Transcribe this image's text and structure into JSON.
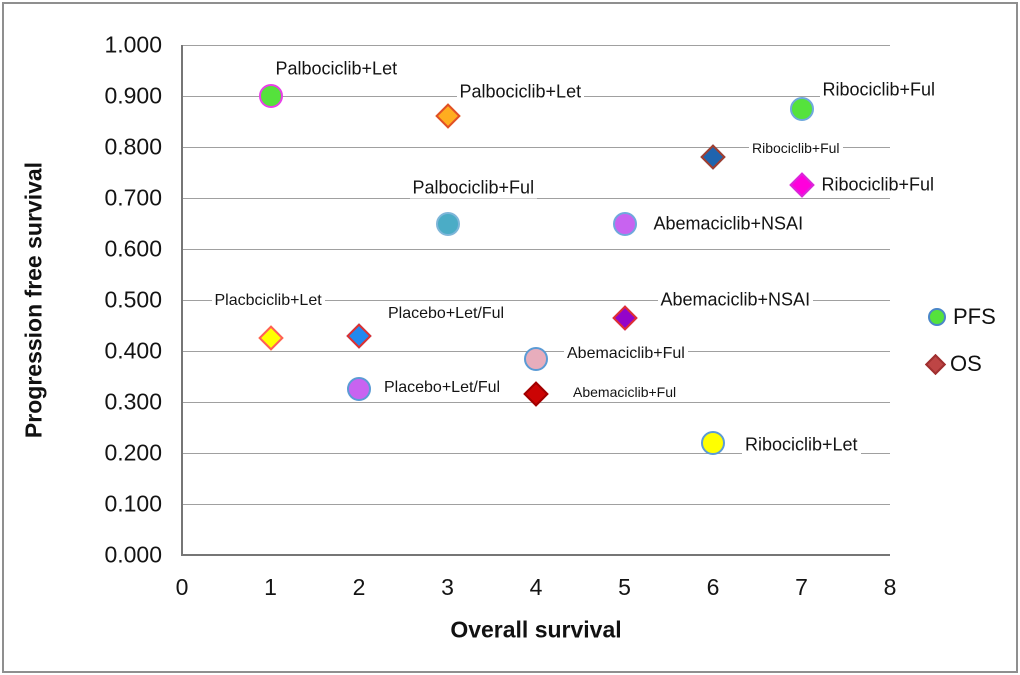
{
  "figure": {
    "background": "#ffffff",
    "border_color": "#8f8f8f",
    "gridline_color": "#a0a0a0",
    "axis_color": "#767676"
  },
  "chart_data": {
    "type": "scatter",
    "title": "",
    "xlabel": "Overall survival",
    "ylabel": "Progression free survival",
    "xlim": [
      0,
      8
    ],
    "ylim": [
      0,
      1
    ],
    "x_ticks": [
      "0",
      "1",
      "2",
      "3",
      "4",
      "5",
      "6",
      "7",
      "8"
    ],
    "y_ticks": [
      "0.000",
      "0.100",
      "0.200",
      "0.300",
      "0.400",
      "0.500",
      "0.600",
      "0.700",
      "0.800",
      "0.900",
      "1.000"
    ],
    "grid": true,
    "legend": {
      "position": "right",
      "entries": [
        {
          "label": "PFS",
          "marker": "circle",
          "fill": "#55E23C",
          "stroke": "#4A86C8"
        },
        {
          "label": "OS",
          "marker": "diamond",
          "fill": "#BE4545",
          "stroke": "#A03030"
        }
      ]
    },
    "series": [
      {
        "name": "PFS",
        "marker": "circle",
        "points": [
          {
            "label": "Palbociclib+Let",
            "x": 1,
            "y": 0.9,
            "fill": "#55E23C",
            "stroke": "#E93FE9",
            "label_dx": 2,
            "label_dy": -27,
            "label_size": "lg"
          },
          {
            "label": "Ribociclib+Ful",
            "x": 7,
            "y": 0.875,
            "fill": "#55E23C",
            "stroke": "#6FA8DC",
            "label_dx": 18,
            "label_dy": -19,
            "label_size": "lg"
          },
          {
            "label": "Palbociclib+Ful",
            "x": 3,
            "y": 0.65,
            "fill": "#4BACC6",
            "stroke": "#7EB6D9",
            "label_dx": -38,
            "label_dy": -36,
            "label_size": "lg"
          },
          {
            "label": "Abemaciclib+NSAI",
            "x": 5,
            "y": 0.65,
            "fill": "#C863F0",
            "stroke": "#6FA8DC",
            "label_dx": 26,
            "label_dy": 0,
            "label_size": "lg"
          },
          {
            "label": "Abemaciclib+Ful",
            "x": 4,
            "y": 0.385,
            "fill": "#E7ADBC",
            "stroke": "#5B9BD5",
            "label_dx": 28,
            "label_dy": -5,
            "label_size": "md"
          },
          {
            "label": "Placebo+Let/Ful",
            "x": 2,
            "y": 0.325,
            "fill": "#C863F0",
            "stroke": "#5B9BD5",
            "label_dx": 22,
            "label_dy": -1,
            "label_size": "md"
          },
          {
            "label": "Ribociclib+Let",
            "x": 6,
            "y": 0.22,
            "fill": "#FFFF00",
            "stroke": "#5B9BD5",
            "label_dx": 29,
            "label_dy": 2,
            "label_size": "lg"
          }
        ]
      },
      {
        "name": "OS",
        "marker": "diamond",
        "points": [
          {
            "label": "Palbociclib+Let",
            "x": 3,
            "y": 0.86,
            "fill": "#FFAD1F",
            "stroke": "#E04F27",
            "label_dx": 9,
            "label_dy": -24,
            "label_size": "lg"
          },
          {
            "label": "Ribociclib+Ful",
            "x": 6,
            "y": 0.78,
            "fill": "#1F64AE",
            "stroke": "#A33E2E",
            "label_dx": 36,
            "label_dy": -9,
            "label_size": "sm"
          },
          {
            "label": "Ribociclib+Ful",
            "x": 7,
            "y": 0.725,
            "fill": "#FF00DC",
            "stroke": "#D928D9",
            "label_dx": 17,
            "label_dy": 0,
            "label_size": "lg"
          },
          {
            "label": "Abemaciclib+NSAI",
            "x": 5,
            "y": 0.465,
            "fill": "#9404C9",
            "stroke": "#E03030",
            "label_dx": 33,
            "label_dy": -18,
            "label_size": "lg"
          },
          {
            "label": "Placbciclib+Let",
            "x": 1,
            "y": 0.425,
            "fill": "#FFFF00",
            "stroke": "#FF5C5C",
            "label_dx": -59,
            "label_dy": -37,
            "label_size": "md"
          },
          {
            "label": "Placebo+Let/Ful",
            "x": 2,
            "y": 0.43,
            "fill": "#2288EE",
            "stroke": "#E03030",
            "label_dx": 26,
            "label_dy": -22,
            "label_size": "md"
          },
          {
            "label": "Abemaciclib+Ful",
            "x": 4,
            "y": 0.315,
            "fill": "#CC0404",
            "stroke": "#A00000",
            "label_dx": 34,
            "label_dy": -2,
            "label_size": "sm"
          }
        ]
      }
    ]
  }
}
